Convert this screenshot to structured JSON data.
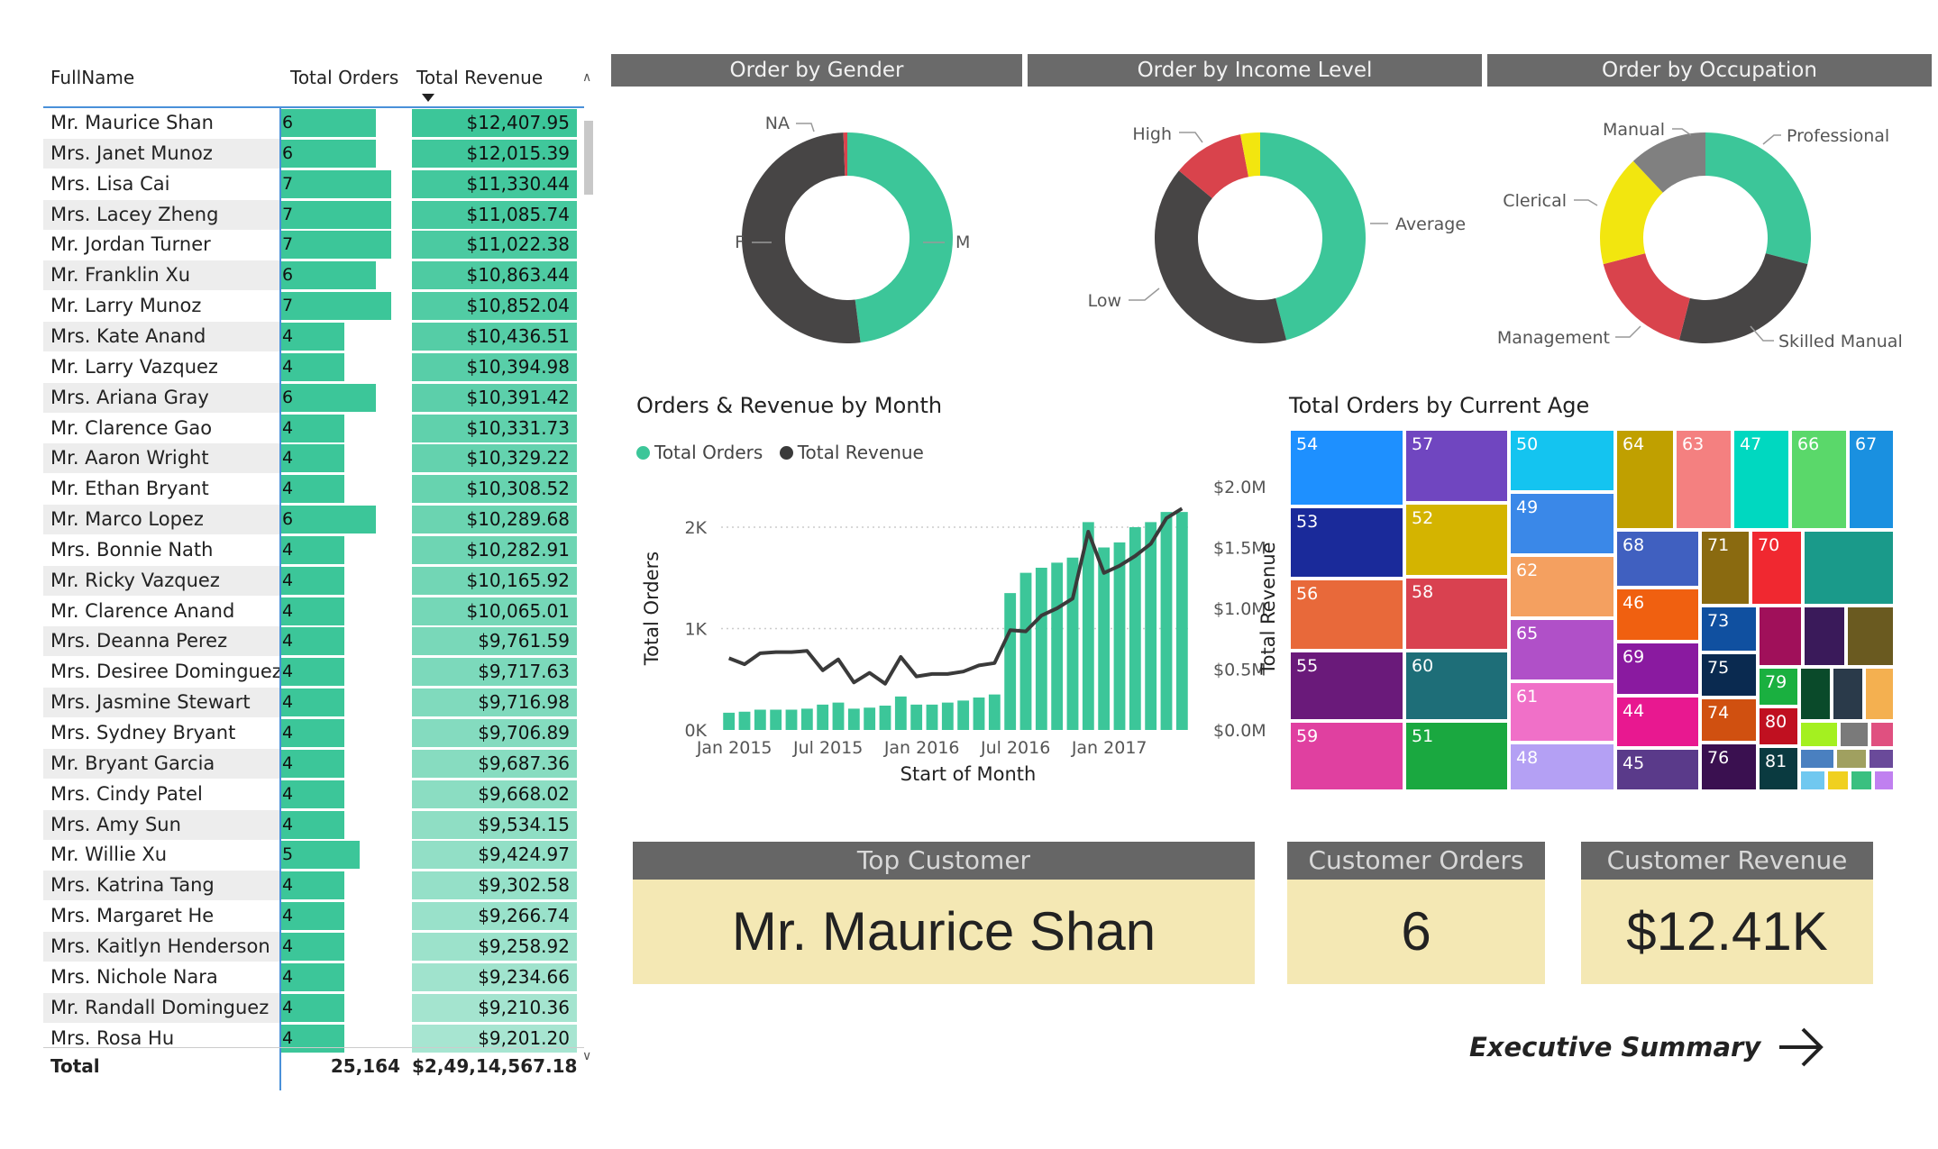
{
  "table": {
    "headers": {
      "name": "FullName",
      "orders": "Total Orders",
      "revenue": "Total Revenue"
    },
    "max_orders": 7,
    "rows": [
      {
        "name": "Mr. Maurice Shan",
        "orders": 6,
        "revenue": "$12,407.95"
      },
      {
        "name": "Mrs. Janet Munoz",
        "orders": 6,
        "revenue": "$12,015.39"
      },
      {
        "name": "Mrs. Lisa Cai",
        "orders": 7,
        "revenue": "$11,330.44"
      },
      {
        "name": "Mrs. Lacey Zheng",
        "orders": 7,
        "revenue": "$11,085.74"
      },
      {
        "name": "Mr. Jordan Turner",
        "orders": 7,
        "revenue": "$11,022.38"
      },
      {
        "name": "Mr. Franklin Xu",
        "orders": 6,
        "revenue": "$10,863.44"
      },
      {
        "name": "Mr. Larry Munoz",
        "orders": 7,
        "revenue": "$10,852.04"
      },
      {
        "name": "Mrs. Kate Anand",
        "orders": 4,
        "revenue": "$10,436.51"
      },
      {
        "name": "Mr. Larry Vazquez",
        "orders": 4,
        "revenue": "$10,394.98"
      },
      {
        "name": "Mrs. Ariana Gray",
        "orders": 6,
        "revenue": "$10,391.42"
      },
      {
        "name": "Mr. Clarence Gao",
        "orders": 4,
        "revenue": "$10,331.73"
      },
      {
        "name": "Mr. Aaron Wright",
        "orders": 4,
        "revenue": "$10,329.22"
      },
      {
        "name": "Mr. Ethan Bryant",
        "orders": 4,
        "revenue": "$10,308.52"
      },
      {
        "name": "Mr. Marco Lopez",
        "orders": 6,
        "revenue": "$10,289.68"
      },
      {
        "name": "Mrs. Bonnie Nath",
        "orders": 4,
        "revenue": "$10,282.91"
      },
      {
        "name": "Mr. Ricky Vazquez",
        "orders": 4,
        "revenue": "$10,165.92"
      },
      {
        "name": "Mr. Clarence Anand",
        "orders": 4,
        "revenue": "$10,065.01"
      },
      {
        "name": "Mrs. Deanna Perez",
        "orders": 4,
        "revenue": "$9,761.59"
      },
      {
        "name": "Mrs. Desiree Dominguez",
        "orders": 4,
        "revenue": "$9,717.63"
      },
      {
        "name": "Mrs. Jasmine Stewart",
        "orders": 4,
        "revenue": "$9,716.98"
      },
      {
        "name": "Mrs. Sydney Bryant",
        "orders": 4,
        "revenue": "$9,706.89"
      },
      {
        "name": "Mr. Bryant Garcia",
        "orders": 4,
        "revenue": "$9,687.36"
      },
      {
        "name": "Mrs. Cindy Patel",
        "orders": 4,
        "revenue": "$9,668.02"
      },
      {
        "name": "Mrs. Amy Sun",
        "orders": 4,
        "revenue": "$9,534.15"
      },
      {
        "name": "Mr. Willie Xu",
        "orders": 5,
        "revenue": "$9,424.97"
      },
      {
        "name": "Mrs. Katrina Tang",
        "orders": 4,
        "revenue": "$9,302.58"
      },
      {
        "name": "Mrs. Margaret He",
        "orders": 4,
        "revenue": "$9,266.74"
      },
      {
        "name": "Mrs. Kaitlyn Henderson",
        "orders": 4,
        "revenue": "$9,258.92"
      },
      {
        "name": "Mrs. Nichole Nara",
        "orders": 4,
        "revenue": "$9,234.66"
      },
      {
        "name": "Mr. Randall Dominguez",
        "orders": 4,
        "revenue": "$9,210.36"
      },
      {
        "name": "Mrs. Rosa Hu",
        "orders": 4,
        "revenue": "$9,201.20"
      }
    ],
    "total": {
      "label": "Total",
      "orders": "25,164",
      "revenue": "$2,49,14,567.18"
    }
  },
  "colors": {
    "teal": "#3cc699",
    "dark": "#474545",
    "red": "#d9434c",
    "yellow": "#f2e60f",
    "gray": "#808080",
    "panel_header": "#6a6a6a",
    "card_body": "#f4e8b4"
  },
  "donuts": [
    {
      "title": "Order by Gender",
      "slices": [
        {
          "label": "M",
          "value": 48
        },
        {
          "label": "F",
          "value": 51.4
        },
        {
          "label": "NA",
          "value": 0.6
        }
      ]
    },
    {
      "title": "Order by Income Level",
      "slices": [
        {
          "label": "Average",
          "value": 46
        },
        {
          "label": "Low",
          "value": 40
        },
        {
          "label": "High",
          "value": 11
        },
        {
          "label": "",
          "value": 3
        }
      ]
    },
    {
      "title": "Order by Occupation",
      "slices": [
        {
          "label": "Professional",
          "value": 29
        },
        {
          "label": "Skilled Manual",
          "value": 25
        },
        {
          "label": "Management",
          "value": 17
        },
        {
          "label": "Clerical",
          "value": 17
        },
        {
          "label": "Manual",
          "value": 12
        }
      ]
    }
  ],
  "chart_data": [
    {
      "type": "bar",
      "title": "Orders & Revenue by Month",
      "xlabel": "Start of Month",
      "ylabel": "Total Orders",
      "y2label": "Total Revenue",
      "legend": [
        "Total Orders",
        "Total Revenue"
      ],
      "x_ticks": [
        "Jan 2015",
        "Jul 2015",
        "Jan 2016",
        "Jul 2016",
        "Jan 2017"
      ],
      "y_ticks": [
        "0K",
        "1K",
        "2K"
      ],
      "y2_ticks": [
        "$0.0M",
        "$0.5M",
        "$1.0M",
        "$1.5M",
        "$2.0M"
      ],
      "ylim": [
        0,
        2400
      ],
      "y2lim": [
        0,
        2000000
      ],
      "months": [
        "2015-01",
        "2015-02",
        "2015-03",
        "2015-04",
        "2015-05",
        "2015-06",
        "2015-07",
        "2015-08",
        "2015-09",
        "2015-10",
        "2015-11",
        "2015-12",
        "2016-01",
        "2016-02",
        "2016-03",
        "2016-04",
        "2016-05",
        "2016-06",
        "2016-07",
        "2016-08",
        "2016-09",
        "2016-10",
        "2016-11",
        "2016-12",
        "2017-01",
        "2017-02",
        "2017-03",
        "2017-04",
        "2017-05",
        "2017-06"
      ],
      "series": [
        {
          "name": "Total Orders",
          "values": [
            170,
            180,
            200,
            200,
            200,
            210,
            250,
            270,
            210,
            220,
            240,
            330,
            250,
            250,
            270,
            290,
            320,
            350,
            1350,
            1550,
            1600,
            1650,
            1700,
            2050,
            1800,
            1850,
            2000,
            2050,
            2150,
            2150
          ]
        },
        {
          "name": "Total Revenue",
          "values": [
            590000,
            540000,
            630000,
            640000,
            640000,
            650000,
            490000,
            580000,
            390000,
            470000,
            380000,
            600000,
            440000,
            460000,
            460000,
            480000,
            530000,
            550000,
            820000,
            810000,
            940000,
            1000000,
            1080000,
            1630000,
            1290000,
            1350000,
            1430000,
            1530000,
            1740000,
            1820000
          ]
        }
      ]
    },
    {
      "type": "heatmap",
      "title": "Total Orders by Current Age",
      "categories": [
        "54",
        "53",
        "56",
        "55",
        "59",
        "57",
        "52",
        "58",
        "60",
        "51",
        "50",
        "49",
        "62",
        "65",
        "61",
        "48",
        "64",
        "63",
        "47",
        "66",
        "67",
        "68",
        "71",
        "70",
        "46",
        "69",
        "44",
        "45",
        "73",
        "75",
        "79",
        "74",
        "80",
        "76",
        "81"
      ]
    }
  ],
  "cards": {
    "top_customer": {
      "title": "Top Customer",
      "value": "Mr. Maurice Shan"
    },
    "customer_orders": {
      "title": "Customer Orders",
      "value": "6"
    },
    "customer_revenue": {
      "title": "Customer Revenue",
      "value": "$12.41K"
    }
  },
  "exec_summary": {
    "label": "Executive Summary",
    "icon": "arrow-right-icon"
  }
}
